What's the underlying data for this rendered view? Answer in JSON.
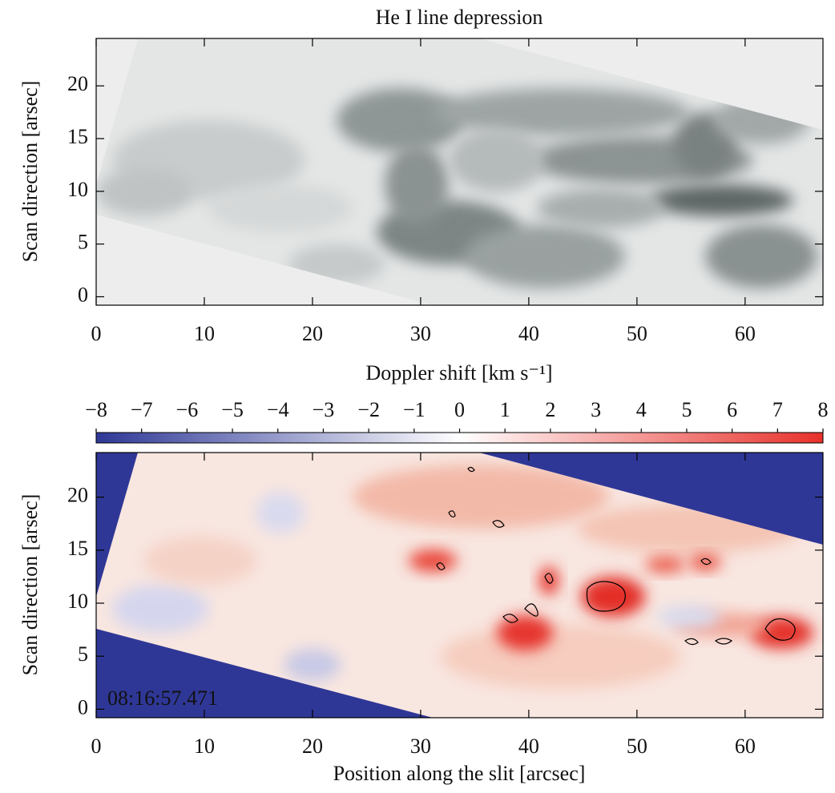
{
  "chart_data": [
    {
      "type": "image",
      "title": "He I line depression",
      "ylabel": "Scan direction  [arsec]",
      "xlim": [
        0,
        67.2
      ],
      "ylim": [
        -0.8,
        24.5
      ],
      "xticks": [
        0,
        10,
        20,
        30,
        40,
        50,
        60
      ],
      "yticks": [
        0,
        5,
        10,
        15,
        20
      ]
    },
    {
      "type": "image",
      "ylabel": "Scan direction  [arsec]",
      "xlabel": "Position along the slit  [arcsec]",
      "annotation": "08:16:57.471",
      "xlim": [
        0,
        67.2
      ],
      "ylim": [
        -0.8,
        24.2
      ],
      "xticks": [
        0,
        10,
        20,
        30,
        40,
        50,
        60
      ],
      "yticks": [
        0,
        5,
        10,
        15,
        20
      ],
      "colorbar": {
        "label": "Doppler shift  [km s⁻¹]",
        "lim": [
          -8,
          8
        ],
        "colors": [
          "#2e3896",
          "#ffffff",
          "#e8302a"
        ],
        "ticks": [
          {
            "value": -8,
            "label": "−8"
          },
          {
            "value": -7,
            "label": "−7"
          },
          {
            "value": -6,
            "label": "−6"
          },
          {
            "value": -5,
            "label": "−5"
          },
          {
            "value": -4,
            "label": "−4"
          },
          {
            "value": -3,
            "label": "−3"
          },
          {
            "value": -2,
            "label": "−2"
          },
          {
            "value": -1,
            "label": "−1"
          },
          0,
          1,
          2,
          3,
          4,
          5,
          6,
          7,
          8
        ]
      }
    }
  ]
}
